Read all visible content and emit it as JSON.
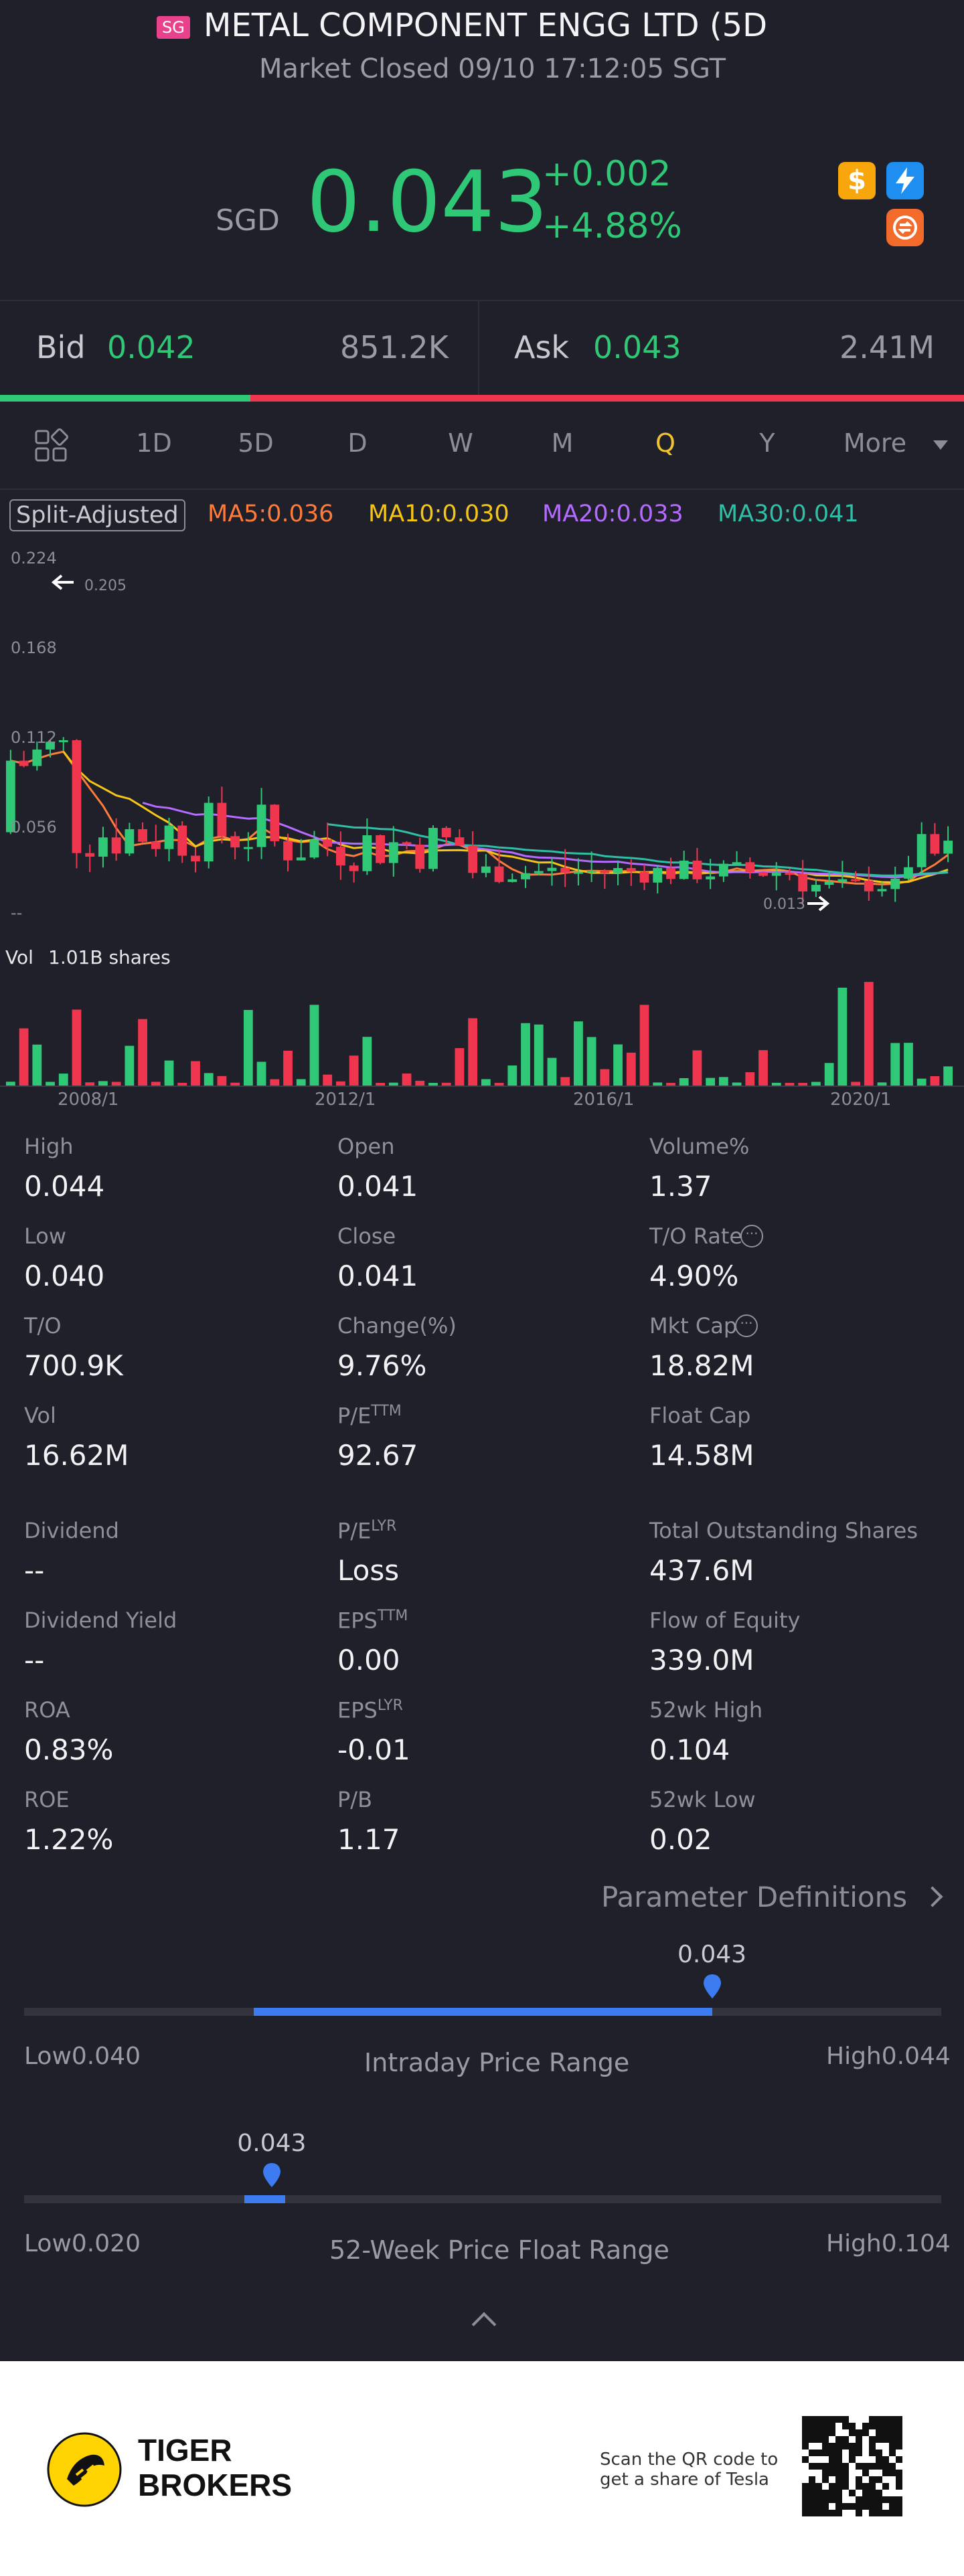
{
  "header": {
    "exchange_tag": "SG",
    "title": "METAL COMPONENT ENGG LTD (5D",
    "status": "Market Closed 09/10 17:12:05 SGT"
  },
  "quote": {
    "currency": "SGD",
    "price": "0.043",
    "change": "+0.002",
    "change_pct": "+4.88%",
    "badges": [
      "dollar-badge-icon",
      "lightning-badge-icon",
      "swap-badge-icon"
    ]
  },
  "orderbook": {
    "bid_label": "Bid",
    "bid_price": "0.042",
    "bid_size": "851.2K",
    "ask_label": "Ask",
    "ask_price": "0.043",
    "ask_size": "2.41M",
    "bid_ratio": 0.26
  },
  "tabs": {
    "items": [
      "1D",
      "5D",
      "D",
      "W",
      "M",
      "Q",
      "Y",
      "More"
    ],
    "active": "Q"
  },
  "chart_legend": {
    "split_adjusted": "Split-Adjusted",
    "ma5": "MA5:0.036",
    "ma10": "MA10:0.030",
    "ma20": "MA20:0.033",
    "ma30": "MA30:0.041"
  },
  "chart_data": {
    "type": "candlestick",
    "y_tick_labels": [
      "0.224",
      "0.168",
      "0.112",
      "0.056",
      "--"
    ],
    "max_marker": "0.205",
    "min_marker": "0.013",
    "x_tick_labels": [
      "2008/1",
      "2012/1",
      "2016/1",
      "2020/1"
    ],
    "volume_label": "Vol",
    "volume_value": "1.01B shares",
    "ylim": [
      0,
      0.224
    ]
  },
  "stats": {
    "high_label": "High",
    "high": "0.044",
    "open_label": "Open",
    "open": "0.041",
    "volume_pct_label": "Volume%",
    "volume_pct": "1.37",
    "low_label": "Low",
    "low": "0.040",
    "close_label": "Close",
    "close": "0.041",
    "to_rate_label": "T/O Rate",
    "to_rate": "4.90%",
    "to_label": "T/O",
    "to": "700.9K",
    "change_label": "Change(%)",
    "change": "9.76%",
    "mkt_cap_label": "Mkt Cap",
    "mkt_cap": "18.82M",
    "vol_label": "Vol",
    "vol": "16.62M",
    "pe_ttm_label": "P/E",
    "pe_ttm_sup": "TTM",
    "pe_ttm": "92.67",
    "float_cap_label": "Float Cap",
    "float_cap": "14.58M",
    "dividend_label": "Dividend",
    "dividend": "--",
    "pe_lyr_label": "P/E",
    "pe_lyr_sup": "LYR",
    "pe_lyr": "Loss",
    "total_shares_label": "Total Outstanding Shares",
    "total_shares": "437.6M",
    "div_yield_label": "Dividend Yield",
    "div_yield": "--",
    "eps_ttm_label": "EPS",
    "eps_ttm_sup": "TTM",
    "eps_ttm": "0.00",
    "flow_equity_label": "Flow of Equity",
    "flow_equity": "339.0M",
    "roa_label": "ROA",
    "roa": "0.83%",
    "eps_lyr_label": "EPS",
    "eps_lyr_sup": "LYR",
    "eps_lyr": "-0.01",
    "wk52_high_label": "52wk High",
    "wk52_high": "0.104",
    "roe_label": "ROE",
    "roe": "1.22%",
    "pb_label": "P/B",
    "pb": "1.17",
    "wk52_low_label": "52wk Low",
    "wk52_low": "0.02"
  },
  "param_link": "Parameter Definitions",
  "intraday_range": {
    "marker": "0.043",
    "low_label": "Low",
    "low": "0.040",
    "high_label": "High",
    "high": "0.044",
    "caption": "Intraday Price Range",
    "fill_start": 0.25,
    "fill_end": 0.75,
    "marker_pos": 0.75
  },
  "week52_range": {
    "marker": "0.043",
    "low_label": "Low",
    "low": "0.020",
    "high_label": "High",
    "high": "0.104",
    "caption": "52-Week Price Float Range",
    "fill_start": 0.24,
    "fill_end": 0.285,
    "marker_pos": 0.27
  },
  "footer": {
    "brand_line1": "TIGER",
    "brand_line2": "BROKERS",
    "scan_line1": "Scan the QR code to",
    "scan_line2": "get a share of Tesla"
  },
  "colors": {
    "up": "#2ec876",
    "down": "#f0364f",
    "accent": "#3d7bf0",
    "ma5": "#ff7b3a",
    "ma10": "#f5c518",
    "ma20": "#b56bff",
    "ma30": "#2fbfa7"
  }
}
